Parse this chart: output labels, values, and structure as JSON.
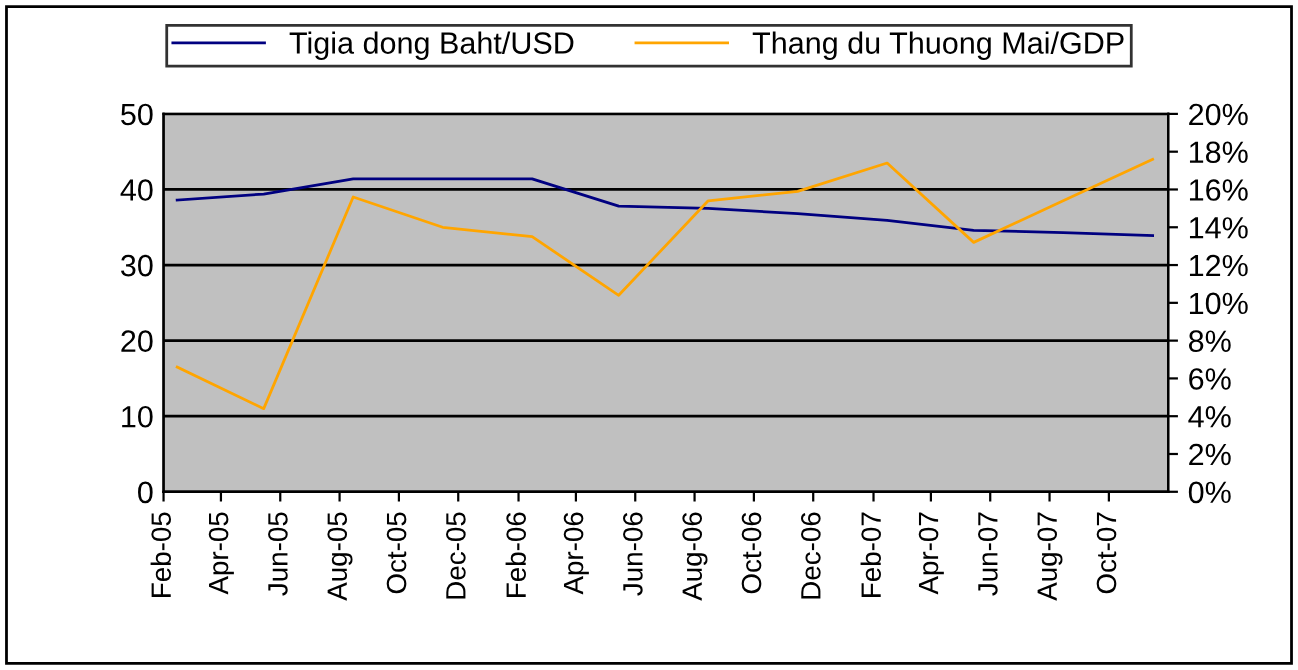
{
  "chart_data": {
    "type": "line",
    "series": [
      {
        "name": "Tigia dong Baht/USD",
        "color": "#000080",
        "axis": "y",
        "x": [
          "2005-02-15",
          "2005-05-15",
          "2005-08-15",
          "2005-11-15",
          "2006-02-15",
          "2006-05-15",
          "2006-08-15",
          "2006-11-15",
          "2007-02-15",
          "2007-05-15",
          "2007-08-15",
          "2007-11-15"
        ],
        "values": [
          38.6,
          39.4,
          41.4,
          41.4,
          41.4,
          37.8,
          37.5,
          36.8,
          35.9,
          34.6,
          34.3,
          33.9
        ]
      },
      {
        "name": "Thang du Thuong Mai/GDP",
        "color": "#ffa500",
        "axis": "y2",
        "x": [
          "2005-02-15",
          "2005-05-15",
          "2005-08-15",
          "2005-11-15",
          "2006-02-15",
          "2006-05-15",
          "2006-08-15",
          "2006-11-15",
          "2007-02-15",
          "2007-05-15",
          "2007-08-15",
          "2007-11-15"
        ],
        "values": [
          6.6,
          4.4,
          15.6,
          14.0,
          13.5,
          10.4,
          15.4,
          15.9,
          17.4,
          13.2,
          15.4,
          17.6
        ]
      }
    ],
    "xlim": [
      "2005-02-01",
      "2007-12-01"
    ],
    "xticks": [
      {
        "value": "2005-02-01",
        "label": "Feb-05"
      },
      {
        "value": "2005-04-01",
        "label": "Apr-05"
      },
      {
        "value": "2005-06-01",
        "label": "Jun-05"
      },
      {
        "value": "2005-08-01",
        "label": "Aug-05"
      },
      {
        "value": "2005-10-01",
        "label": "Oct-05"
      },
      {
        "value": "2005-12-01",
        "label": "Dec-05"
      },
      {
        "value": "2006-02-01",
        "label": "Feb-06"
      },
      {
        "value": "2006-04-01",
        "label": "Apr-06"
      },
      {
        "value": "2006-06-01",
        "label": "Jun-06"
      },
      {
        "value": "2006-08-01",
        "label": "Aug-06"
      },
      {
        "value": "2006-10-01",
        "label": "Oct-06"
      },
      {
        "value": "2006-12-01",
        "label": "Dec-06"
      },
      {
        "value": "2007-02-01",
        "label": "Feb-07"
      },
      {
        "value": "2007-04-01",
        "label": "Apr-07"
      },
      {
        "value": "2007-06-01",
        "label": "Jun-07"
      },
      {
        "value": "2007-08-01",
        "label": "Aug-07"
      },
      {
        "value": "2007-10-01",
        "label": "Oct-07"
      }
    ],
    "ylim": [
      0,
      50
    ],
    "yticks": [
      0,
      10,
      20,
      30,
      40,
      50
    ],
    "y2lim": [
      0,
      20
    ],
    "y2ticks": [
      {
        "value": 0,
        "label": "0%"
      },
      {
        "value": 2,
        "label": "2%"
      },
      {
        "value": 4,
        "label": "4%"
      },
      {
        "value": 6,
        "label": "6%"
      },
      {
        "value": 8,
        "label": "8%"
      },
      {
        "value": 10,
        "label": "10%"
      },
      {
        "value": 12,
        "label": "12%"
      },
      {
        "value": 14,
        "label": "14%"
      },
      {
        "value": 16,
        "label": "16%"
      },
      {
        "value": 18,
        "label": "18%"
      },
      {
        "value": 20,
        "label": "20%"
      }
    ],
    "grid": "y",
    "legend": "top",
    "marker": "none",
    "line_style": "solid"
  }
}
